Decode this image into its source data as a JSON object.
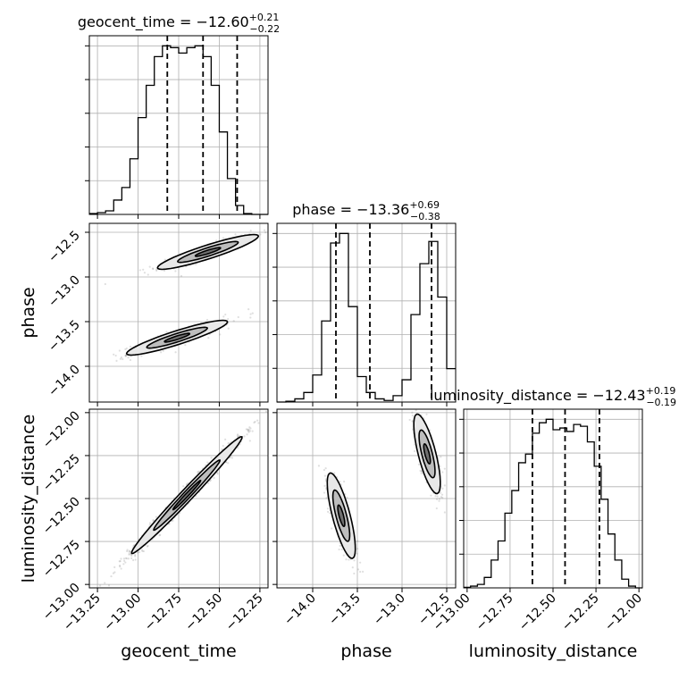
{
  "chart_data": {
    "type": "corner",
    "parameters": [
      "geocent_time",
      "phase",
      "luminosity_distance"
    ],
    "panel_titles": [
      {
        "prefix": "geocent_time = ",
        "value": "−12.60",
        "plus": "+0.21",
        "minus": "−0.22"
      },
      {
        "prefix": "phase = ",
        "value": "−13.36",
        "plus": "+0.69",
        "minus": "−0.38"
      },
      {
        "prefix": "luminosity_distance = ",
        "value": "−12.43",
        "plus": "+0.19",
        "minus": "−0.19"
      }
    ],
    "axes": {
      "geocent_time": {
        "range": [
          -13.3,
          -12.2
        ],
        "ticks": [
          -13.25,
          -13.0,
          -12.75,
          -12.5,
          -12.25
        ],
        "tick_labels": [
          "−13.25",
          "−13.00",
          "−12.75",
          "−12.50",
          "−12.25"
        ]
      },
      "phase": {
        "range": [
          -14.4,
          -12.4
        ],
        "ticks": [
          -14.0,
          -13.5,
          -13.0,
          -12.5
        ],
        "tick_labels": [
          "−14.0",
          "−13.5",
          "−13.0",
          "−12.5"
        ]
      },
      "luminosity_distance": {
        "range": [
          -13.02,
          -11.98
        ],
        "ticks": [
          -13.0,
          -12.75,
          -12.5,
          -12.25,
          -12.0
        ],
        "tick_labels": [
          "−13.00",
          "−12.75",
          "−12.50",
          "−12.25",
          "−12.00"
        ]
      }
    },
    "histograms": [
      {
        "param": "geocent_time",
        "quantiles": [
          -12.82,
          -12.6,
          -12.39
        ],
        "edges": [
          -13.3,
          -13.25,
          -13.2,
          -13.15,
          -13.1,
          -13.05,
          -13.0,
          -12.95,
          -12.9,
          -12.85,
          -12.8,
          -12.75,
          -12.7,
          -12.65,
          -12.6,
          -12.55,
          -12.5,
          -12.45,
          -12.4,
          -12.35,
          -12.3,
          -12.25,
          -12.2
        ],
        "counts": [
          0.5,
          1.0,
          2.0,
          8,
          15,
          31,
          54,
          72,
          88,
          94,
          93,
          90,
          93,
          94,
          88,
          72,
          46,
          20,
          5,
          0.5,
          0,
          0
        ]
      },
      {
        "param": "phase",
        "quantiles": [
          -13.74,
          -13.36,
          -12.67
        ],
        "edges": [
          -14.4,
          -14.3,
          -14.2,
          -14.1,
          -14.0,
          -13.9,
          -13.8,
          -13.7,
          -13.6,
          -13.5,
          -13.4,
          -13.3,
          -13.2,
          -13.1,
          -13.0,
          -12.9,
          -12.8,
          -12.7,
          -12.6,
          -12.5,
          -12.4
        ],
        "counts": [
          0,
          0.5,
          2,
          6,
          17,
          51,
          100,
          106,
          60,
          16,
          6,
          2,
          1,
          4,
          14,
          55,
          87,
          101,
          66,
          21
        ]
      },
      {
        "param": "luminosity_distance",
        "quantiles": [
          -12.62,
          -12.43,
          -12.23
        ],
        "edges": [
          -13.02,
          -12.98,
          -12.94,
          -12.9,
          -12.86,
          -12.82,
          -12.78,
          -12.74,
          -12.7,
          -12.66,
          -12.62,
          -12.58,
          -12.54,
          -12.5,
          -12.46,
          -12.42,
          -12.38,
          -12.34,
          -12.3,
          -12.26,
          -12.22,
          -12.18,
          -12.14,
          -12.1,
          -12.06,
          -12.02,
          -11.98
        ],
        "counts": [
          0.3,
          1.0,
          2.0,
          6,
          16,
          27,
          43,
          56,
          72,
          77,
          89,
          95,
          97,
          91,
          92,
          90,
          94,
          93,
          84,
          70,
          51,
          31,
          16,
          5,
          1,
          0
        ]
      }
    ],
    "scatter_panels": [
      {
        "x": "geocent_time",
        "y": "phase"
      },
      {
        "x": "geocent_time",
        "y": "luminosity_distance"
      },
      {
        "x": "phase",
        "y": "luminosity_distance"
      }
    ],
    "grid": true,
    "colors": {
      "line": "#000000",
      "points": "#6e6e6e",
      "grid": "#b0b0b0"
    }
  }
}
